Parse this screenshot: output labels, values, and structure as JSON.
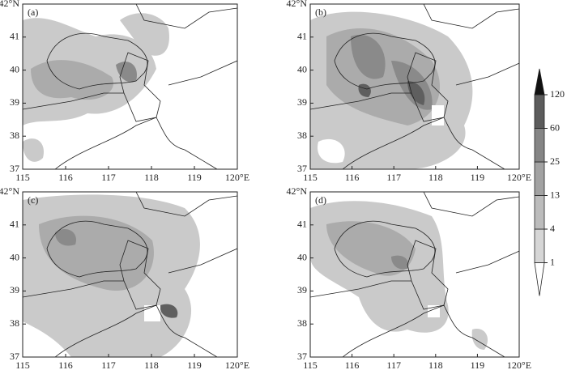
{
  "panels": [
    {
      "label": "(a)"
    },
    {
      "label": "(b)"
    },
    {
      "label": "(c)"
    },
    {
      "label": "(d)"
    }
  ],
  "axes": {
    "xlim": [
      115,
      120
    ],
    "ylim": [
      37,
      42
    ],
    "xticks": [
      115,
      116,
      117,
      118,
      119,
      {
        "value": 120,
        "label": "120°E"
      }
    ],
    "yticks": [
      37,
      38,
      39,
      40,
      41,
      {
        "value": 42,
        "label": "42°N"
      }
    ]
  },
  "colorbar": {
    "levels": [
      1,
      4,
      13,
      25,
      60,
      120
    ],
    "colors": [
      "#ffffff",
      "#d6d6d6",
      "#bcbcbc",
      "#a2a2a2",
      "#858585",
      "#5c5c5c",
      "#111111"
    ]
  }
}
